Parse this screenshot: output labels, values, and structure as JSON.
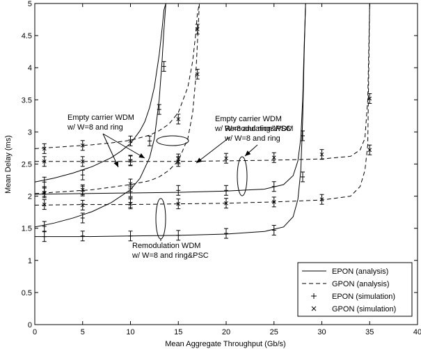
{
  "chart_data": {
    "type": "line",
    "title": "",
    "xlabel": "Mean Aggregate Throughput (Gb/s)",
    "ylabel": "Mean Delay (ms)",
    "xlim": [
      0,
      40
    ],
    "ylim": [
      0,
      5
    ],
    "xticks": [
      "0",
      "5",
      "10",
      "15",
      "20",
      "25",
      "30",
      "35",
      "40"
    ],
    "yticks": [
      "0",
      "0.5",
      "1",
      "1.5",
      "2",
      "2.5",
      "3",
      "3.5",
      "4",
      "4.5",
      "5"
    ],
    "grid": false,
    "legend_position": "bottom-right",
    "legend": [
      {
        "label": "EPON (analysis)",
        "style": "solid-line"
      },
      {
        "label": "GPON (analysis)",
        "style": "dashed-line"
      },
      {
        "label": "EPON (simulation)",
        "style": "plus-marker"
      },
      {
        "label": "GPON (simulation)",
        "style": "x-marker"
      }
    ],
    "annotations": [
      {
        "lines": [
          "Empty carrier WDM",
          "w/ W=8 and ring"
        ]
      },
      {
        "lines": [
          "Empty carrier WDM",
          "w/ W=8 and ring&PSC"
        ]
      },
      {
        "lines": [
          "Remodulation WDM",
          "w/ W=8 and ring"
        ]
      },
      {
        "lines": [
          "Remodulation WDM",
          "w/ W=8 and ring&PSC"
        ]
      }
    ],
    "series": [
      {
        "group": "Empty carrier WDM w/ W=8 and ring",
        "kind": "EPON",
        "curve": "solid",
        "x": [
          0,
          2,
          4,
          6,
          8,
          9,
          10,
          11,
          11.5,
          12,
          12.5,
          13,
          13.3,
          13.5,
          13.7
        ],
        "y": [
          2.22,
          2.28,
          2.36,
          2.46,
          2.6,
          2.7,
          2.82,
          3.02,
          3.16,
          3.38,
          3.7,
          4.2,
          4.6,
          4.9,
          5.0
        ],
        "sim_x": [
          1,
          5,
          10,
          12,
          13
        ],
        "sim_y": [
          2.22,
          2.33,
          2.56,
          2.86,
          3.35
        ]
      },
      {
        "group": "Empty carrier WDM w/ W=8 and ring",
        "kind": "GPON",
        "curve": "dashed",
        "x": [
          0,
          2,
          4,
          6,
          8,
          10,
          12,
          13,
          14,
          15,
          16,
          16.5,
          16.8,
          17.0,
          17.2
        ],
        "y": [
          2.74,
          2.76,
          2.78,
          2.8,
          2.83,
          2.87,
          2.95,
          3.02,
          3.12,
          3.3,
          3.7,
          4.1,
          4.5,
          4.85,
          5.0
        ],
        "sim_x": [
          1,
          5,
          10,
          15,
          17
        ],
        "sim_y": [
          2.74,
          2.79,
          2.86,
          3.2,
          4.6
        ]
      },
      {
        "group": "Empty carrier WDM w/ W=8 and ring&PSC",
        "kind": "EPON",
        "curve": "solid",
        "x": [
          0,
          2,
          4,
          6,
          8,
          10,
          11,
          12,
          12.5,
          13,
          13.3,
          13.5,
          13.7
        ],
        "y": [
          1.52,
          1.58,
          1.66,
          1.76,
          1.9,
          2.1,
          2.28,
          2.6,
          2.9,
          3.5,
          4.1,
          4.6,
          5.0
        ],
        "sim_x": [
          1,
          5,
          10,
          13.5
        ],
        "sim_y": [
          1.53,
          1.66,
          1.9,
          4.02
        ]
      },
      {
        "group": "Empty carrier WDM w/ W=8 and ring&PSC",
        "kind": "GPON",
        "curve": "dashed",
        "x": [
          0,
          2,
          4,
          6,
          8,
          10,
          12,
          13,
          14,
          15,
          16,
          16.5,
          16.8,
          17.0,
          17.2
        ],
        "y": [
          2.04,
          2.06,
          2.08,
          2.1,
          2.14,
          2.18,
          2.24,
          2.3,
          2.4,
          2.55,
          2.9,
          3.3,
          3.8,
          4.4,
          5.0
        ],
        "sim_x": [
          1,
          5,
          10,
          15,
          17
        ],
        "sim_y": [
          2.05,
          2.1,
          2.19,
          2.58,
          3.9
        ]
      },
      {
        "group": "Remodulation WDM w/ W=8 and ring",
        "kind": "EPON",
        "curve": "solid",
        "x": [
          0,
          5,
          10,
          15,
          20,
          24,
          26,
          27,
          27.5,
          27.8,
          28.0,
          28.15,
          28.3
        ],
        "y": [
          2.03,
          2.04,
          2.05,
          2.06,
          2.08,
          2.11,
          2.18,
          2.32,
          2.55,
          2.9,
          3.5,
          4.3,
          5.0
        ],
        "sim_x": [
          1,
          5,
          10,
          15,
          20,
          25,
          28
        ],
        "sim_y": [
          2.07,
          2.08,
          2.07,
          2.09,
          2.09,
          2.15,
          2.94
        ]
      },
      {
        "group": "Remodulation WDM w/ W=8 and ring",
        "kind": "GPON",
        "curve": "dashed",
        "x": [
          0,
          5,
          10,
          15,
          20,
          25,
          30,
          33,
          34,
          34.5,
          34.8,
          35.0
        ],
        "y": [
          2.54,
          2.54,
          2.54,
          2.54,
          2.55,
          2.56,
          2.58,
          2.62,
          2.72,
          2.9,
          3.5,
          5.0
        ],
        "sim_x": [
          1,
          5,
          10,
          15,
          20,
          25,
          30,
          35
        ],
        "sim_y": [
          2.54,
          2.54,
          2.55,
          2.54,
          2.59,
          2.6,
          2.65,
          3.52
        ]
      },
      {
        "group": "Remodulation WDM w/ W=8 and ring&PSC",
        "kind": "EPON",
        "curve": "solid",
        "x": [
          0,
          5,
          10,
          15,
          20,
          24,
          26,
          27,
          27.5,
          27.8,
          28.0,
          28.15,
          28.3
        ],
        "y": [
          1.37,
          1.37,
          1.38,
          1.39,
          1.41,
          1.45,
          1.52,
          1.68,
          1.95,
          2.4,
          3.2,
          4.2,
          5.0
        ],
        "sim_x": [
          1,
          5,
          10,
          15,
          20,
          25,
          28
        ],
        "sim_y": [
          1.37,
          1.38,
          1.38,
          1.39,
          1.42,
          1.47,
          2.3
        ]
      },
      {
        "group": "Remodulation WDM w/ W=8 and ring&PSC",
        "kind": "GPON",
        "curve": "dashed",
        "x": [
          0,
          5,
          10,
          15,
          20,
          25,
          30,
          33,
          34,
          34.5,
          34.8,
          35.0
        ],
        "y": [
          1.86,
          1.87,
          1.87,
          1.88,
          1.89,
          1.91,
          1.94,
          2.0,
          2.15,
          2.4,
          2.8,
          5.0
        ],
        "sim_x": [
          1,
          5,
          10,
          15,
          20,
          25,
          30,
          35
        ],
        "sim_y": [
          1.87,
          1.86,
          1.88,
          1.88,
          1.89,
          1.91,
          1.95,
          2.72
        ]
      }
    ]
  }
}
